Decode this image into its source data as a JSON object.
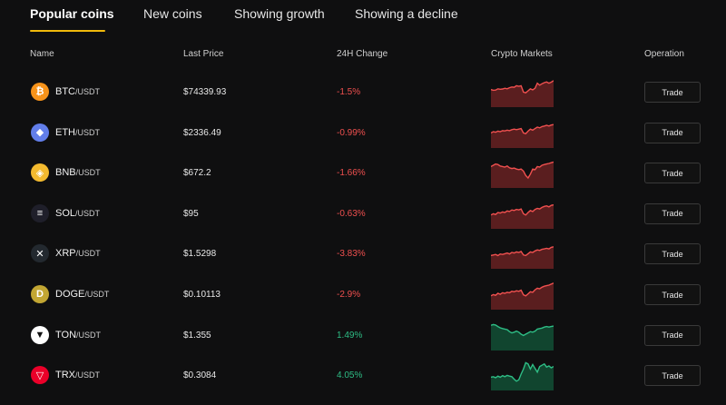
{
  "tabs": [
    {
      "label": "Popular coins",
      "active": true
    },
    {
      "label": "New coins",
      "active": false
    },
    {
      "label": "Showing growth",
      "active": false
    },
    {
      "label": "Showing a decline",
      "active": false
    }
  ],
  "header": {
    "name": "Name",
    "last_price": "Last Price",
    "change": "24H Change",
    "markets": "Crypto Markets",
    "operation": "Operation"
  },
  "colors": {
    "accent": "#f0b90b",
    "down": "#f0504f",
    "up": "#2ebd85"
  },
  "rows": [
    {
      "base": "BTC",
      "quote": "/USDT",
      "icon": "btc-icon",
      "icon_color": "#f7931a",
      "price": "$74339.93",
      "change": "-1.5%",
      "trend": "down",
      "trade": "Trade",
      "spark": [
        0.45,
        0.48,
        0.47,
        0.42,
        0.44,
        0.43,
        0.4,
        0.42,
        0.38,
        0.35,
        0.36,
        0.3,
        0.32,
        0.3,
        0.55,
        0.58,
        0.5,
        0.42,
        0.46,
        0.4,
        0.2,
        0.28,
        0.22,
        0.18,
        0.15,
        0.2,
        0.16,
        0.1
      ]
    },
    {
      "base": "ETH",
      "quote": "/USDT",
      "icon": "eth-icon",
      "icon_color": "#627eea",
      "price": "$2336.49",
      "change": "-0.99%",
      "trend": "down",
      "trade": "Trade",
      "spark": [
        0.55,
        0.5,
        0.52,
        0.48,
        0.5,
        0.46,
        0.47,
        0.44,
        0.46,
        0.42,
        0.4,
        0.42,
        0.4,
        0.38,
        0.55,
        0.58,
        0.48,
        0.4,
        0.44,
        0.38,
        0.32,
        0.35,
        0.3,
        0.28,
        0.25,
        0.28,
        0.24,
        0.22
      ]
    },
    {
      "base": "BNB",
      "quote": "/USDT",
      "icon": "bnb-icon",
      "icon_color": "#f3ba2f",
      "price": "$672.2",
      "change": "-1.66%",
      "trend": "down",
      "trade": "Trade",
      "spark": [
        0.3,
        0.25,
        0.2,
        0.22,
        0.28,
        0.3,
        0.32,
        0.28,
        0.35,
        0.38,
        0.36,
        0.4,
        0.42,
        0.4,
        0.48,
        0.65,
        0.75,
        0.6,
        0.4,
        0.42,
        0.3,
        0.32,
        0.25,
        0.22,
        0.2,
        0.18,
        0.15,
        0.12
      ]
    },
    {
      "base": "SOL",
      "quote": "/USDT",
      "icon": "sol-icon",
      "icon_color": "#1f1f2a",
      "price": "$95",
      "change": "-0.63%",
      "trend": "down",
      "trade": "Trade",
      "spark": [
        0.6,
        0.55,
        0.58,
        0.5,
        0.52,
        0.48,
        0.5,
        0.44,
        0.46,
        0.4,
        0.42,
        0.38,
        0.4,
        0.36,
        0.55,
        0.6,
        0.5,
        0.42,
        0.46,
        0.38,
        0.34,
        0.36,
        0.3,
        0.26,
        0.24,
        0.28,
        0.22,
        0.2
      ]
    },
    {
      "base": "XRP",
      "quote": "/USDT",
      "icon": "xrp-icon",
      "icon_color": "#23292f",
      "price": "$1.5298",
      "change": "-3.83%",
      "trend": "down",
      "trade": "Trade",
      "spark": [
        0.62,
        0.6,
        0.58,
        0.62,
        0.56,
        0.58,
        0.55,
        0.52,
        0.56,
        0.5,
        0.52,
        0.48,
        0.5,
        0.46,
        0.6,
        0.62,
        0.55,
        0.48,
        0.5,
        0.44,
        0.4,
        0.42,
        0.38,
        0.36,
        0.34,
        0.36,
        0.3,
        0.28
      ]
    },
    {
      "base": "DOGE",
      "quote": "/USDT",
      "icon": "doge-icon",
      "icon_color": "#c2a633",
      "price": "$0.10113",
      "change": "-2.9%",
      "trend": "down",
      "trade": "Trade",
      "spark": [
        0.6,
        0.55,
        0.58,
        0.5,
        0.54,
        0.48,
        0.5,
        0.46,
        0.48,
        0.42,
        0.44,
        0.4,
        0.42,
        0.38,
        0.56,
        0.6,
        0.52,
        0.44,
        0.46,
        0.36,
        0.3,
        0.32,
        0.26,
        0.22,
        0.2,
        0.18,
        0.14,
        0.1
      ]
    },
    {
      "base": "TON",
      "quote": "/USDT",
      "icon": "ton-icon",
      "icon_color": "#ffffff",
      "price": "$1.355",
      "change": "1.49%",
      "trend": "up",
      "trade": "Trade",
      "spark": [
        0.15,
        0.12,
        0.14,
        0.2,
        0.25,
        0.28,
        0.3,
        0.32,
        0.4,
        0.45,
        0.42,
        0.38,
        0.42,
        0.5,
        0.55,
        0.5,
        0.45,
        0.4,
        0.42,
        0.38,
        0.3,
        0.28,
        0.26,
        0.22,
        0.2,
        0.22,
        0.2,
        0.18
      ]
    },
    {
      "base": "TRX",
      "quote": "/USDT",
      "icon": "trx-icon",
      "icon_color": "#eb0029",
      "price": "$0.3084",
      "change": "4.05%",
      "trend": "up",
      "trade": "Trade",
      "spark": [
        0.62,
        0.6,
        0.64,
        0.58,
        0.62,
        0.56,
        0.6,
        0.55,
        0.58,
        0.6,
        0.7,
        0.78,
        0.72,
        0.5,
        0.3,
        0.05,
        0.1,
        0.3,
        0.12,
        0.28,
        0.42,
        0.2,
        0.15,
        0.1,
        0.22,
        0.18,
        0.25,
        0.2
      ]
    }
  ]
}
